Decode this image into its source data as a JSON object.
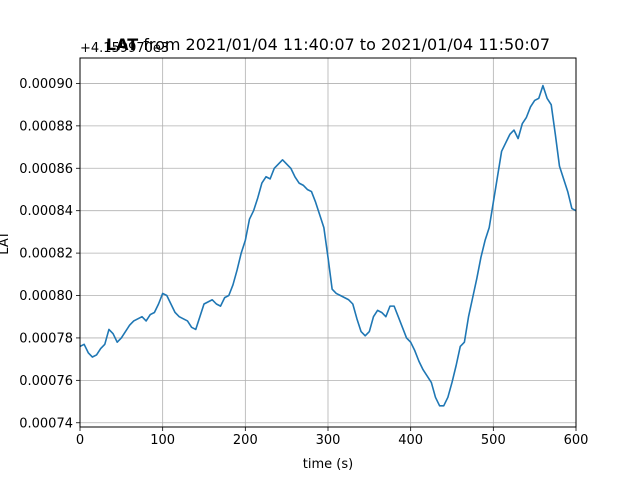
{
  "chart_data": {
    "type": "line",
    "title_bold": "LAT",
    "title_rest": " from 2021/01/04 11:40:07 to 2021/01/04 11:50:07",
    "xlabel": "time (s)",
    "ylabel": "LAT",
    "y_offset_label": "+4.159970e3",
    "xlim": [
      0,
      600
    ],
    "ylim": [
      0.000738,
      0.000912
    ],
    "x_ticks": [
      0,
      100,
      200,
      300,
      400,
      500,
      600
    ],
    "x_tick_labels": [
      "0",
      "100",
      "200",
      "300",
      "400",
      "500",
      "600"
    ],
    "y_ticks": [
      0.00074,
      0.00076,
      0.00078,
      0.0008,
      0.00082,
      0.00084,
      0.00086,
      0.00088,
      0.0009
    ],
    "y_tick_labels": [
      "0.00074",
      "0.00076",
      "0.00078",
      "0.00080",
      "0.00082",
      "0.00084",
      "0.00086",
      "0.00088",
      "0.00090"
    ],
    "grid": true,
    "line_color": "#1f77b4",
    "series": [
      {
        "x": [
          0,
          5,
          10,
          15,
          20,
          25,
          30,
          35,
          40,
          45,
          50,
          55,
          60,
          65,
          70,
          75,
          80,
          85,
          90,
          95,
          100,
          105,
          110,
          115,
          120,
          125,
          130,
          135,
          140,
          145,
          150,
          155,
          160,
          165,
          170,
          175,
          180,
          185,
          190,
          195,
          200,
          205,
          210,
          215,
          220,
          225,
          230,
          235,
          240,
          245,
          250,
          255,
          260,
          265,
          270,
          275,
          280,
          285,
          290,
          295,
          300,
          305,
          310,
          315,
          320,
          325,
          330,
          335,
          340,
          345,
          350,
          355,
          360,
          365,
          370,
          375,
          380,
          385,
          390,
          395,
          400,
          405,
          410,
          415,
          420,
          425,
          430,
          435,
          440,
          445,
          450,
          455,
          460,
          465,
          470,
          475,
          480,
          485,
          490,
          495,
          500,
          505,
          510,
          515,
          520,
          525,
          530,
          535,
          540,
          545,
          550,
          555,
          560,
          565,
          570,
          575,
          580,
          585,
          590,
          595,
          600
        ],
        "y": [
          0.000776,
          0.000777,
          0.000773,
          0.000771,
          0.000772,
          0.000775,
          0.000777,
          0.000784,
          0.000782,
          0.000778,
          0.00078,
          0.000783,
          0.000786,
          0.000788,
          0.000789,
          0.00079,
          0.000788,
          0.000791,
          0.000792,
          0.000796,
          0.000801,
          0.0008,
          0.000796,
          0.000792,
          0.00079,
          0.000789,
          0.000788,
          0.000785,
          0.000784,
          0.00079,
          0.000796,
          0.000797,
          0.000798,
          0.000796,
          0.000795,
          0.000799,
          0.0008,
          0.000805,
          0.000812,
          0.00082,
          0.000826,
          0.000836,
          0.00084,
          0.000846,
          0.000853,
          0.000856,
          0.000855,
          0.00086,
          0.000862,
          0.000864,
          0.000862,
          0.00086,
          0.000856,
          0.000853,
          0.000852,
          0.00085,
          0.000849,
          0.000844,
          0.000838,
          0.000832,
          0.000818,
          0.000803,
          0.000801,
          0.0008,
          0.000799,
          0.000798,
          0.000796,
          0.000789,
          0.000783,
          0.000781,
          0.000783,
          0.00079,
          0.000793,
          0.000792,
          0.00079,
          0.000795,
          0.000795,
          0.00079,
          0.000785,
          0.00078,
          0.000778,
          0.000774,
          0.000769,
          0.000765,
          0.000762,
          0.000759,
          0.000752,
          0.000748,
          0.000748,
          0.000752,
          0.000759,
          0.000767,
          0.000776,
          0.000778,
          0.00079,
          0.000799,
          0.000808,
          0.000818,
          0.000826,
          0.000832,
          0.000844,
          0.000856,
          0.000868,
          0.000872,
          0.000876,
          0.000878,
          0.000874,
          0.000881,
          0.000884,
          0.000889,
          0.000892,
          0.000893,
          0.000899,
          0.000893,
          0.00089,
          0.000876,
          0.000861,
          0.000855,
          0.000849,
          0.000841,
          0.00084
        ]
      }
    ]
  }
}
